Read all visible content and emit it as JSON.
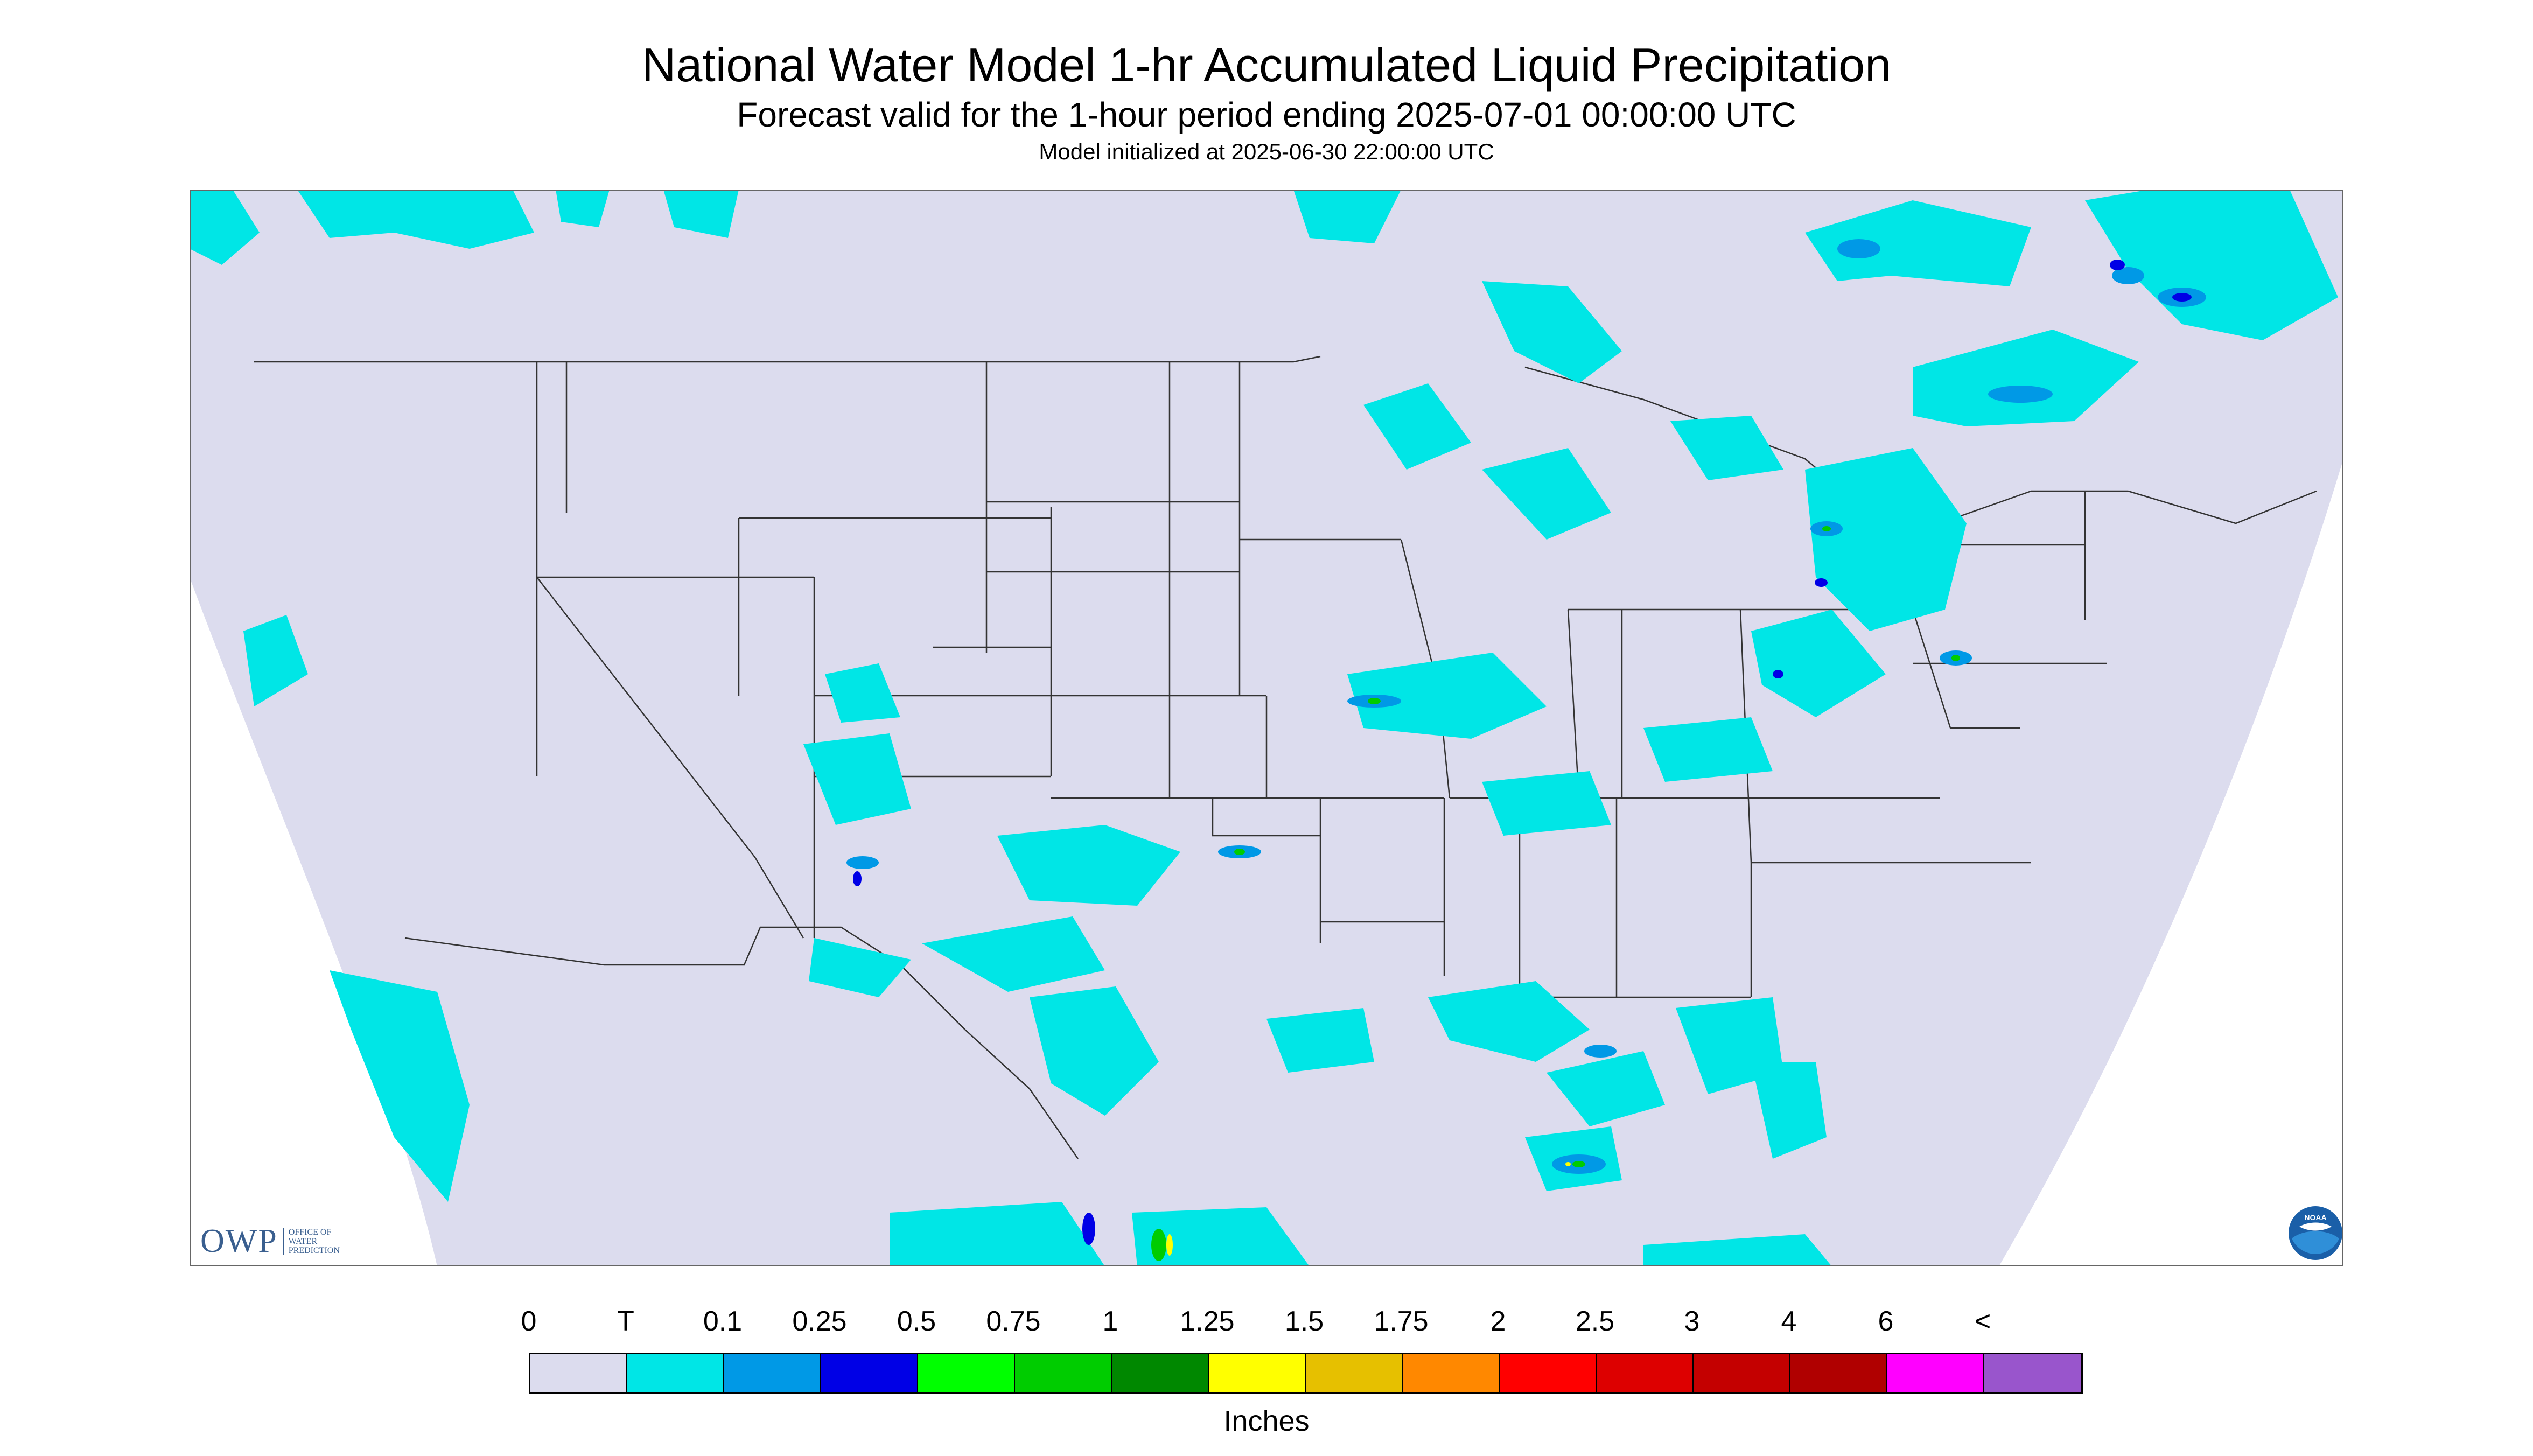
{
  "header": {
    "title": "National Water Model 1-hr Accumulated Liquid Precipitation",
    "subtitle": "Forecast valid for the 1-hour period ending 2025-07-01 00:00:00 UTC",
    "init_note": "Model initialized at 2025-06-30 22:00:00 UTC"
  },
  "map": {
    "background_color": "#dcdcee",
    "outside_color": "#ffffff",
    "border_color": "#000000"
  },
  "logos": {
    "owp_mark": "OWP",
    "owp_text_lines": [
      "OFFICE OF",
      "WATER",
      "PREDICTION"
    ],
    "noaa_text": "NOAA"
  },
  "legend": {
    "labels": [
      "0",
      "T",
      "0.1",
      "0.25",
      "0.5",
      "0.75",
      "1",
      "1.25",
      "1.5",
      "1.75",
      "2",
      "2.5",
      "3",
      "4",
      "6",
      "<"
    ],
    "colors": [
      "#dcdcee",
      "#00e6e6",
      "#0099e6",
      "#0000e6",
      "#00ff00",
      "#00cc00",
      "#008800",
      "#ffff00",
      "#e6c000",
      "#ff8800",
      "#ff0000",
      "#dd0000",
      "#c40000",
      "#b00000",
      "#ff00ff",
      "#9955cc"
    ],
    "units": "Inches"
  }
}
